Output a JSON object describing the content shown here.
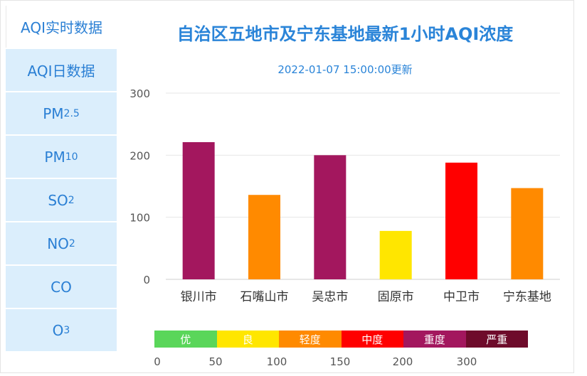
{
  "tabs": [
    {
      "label": "AQI实时数据",
      "sub": ""
    },
    {
      "label": "AQI日数据",
      "sub": ""
    },
    {
      "label": "PM",
      "sub": "2.5"
    },
    {
      "label": "PM",
      "sub": "10"
    },
    {
      "label": "SO",
      "sub": "2"
    },
    {
      "label": "NO",
      "sub": "2"
    },
    {
      "label": "CO",
      "sub": ""
    },
    {
      "label": "O",
      "sub": "3"
    }
  ],
  "chart_data": {
    "type": "bar",
    "title": "自治区五地市及宁东基地最新1小时AQI浓度",
    "subtitle": "2022-01-07 15:00:00更新",
    "categories": [
      "银川市",
      "石嘴山市",
      "吴忠市",
      "固原市",
      "中卫市",
      "宁东基地"
    ],
    "values": [
      221,
      136,
      200,
      78,
      188,
      147
    ],
    "bar_colors": [
      "#a3175e",
      "#ff8a00",
      "#a3175e",
      "#ffe600",
      "#ff0000",
      "#ff8a00"
    ],
    "ylim": [
      0,
      300
    ],
    "yticks": [
      0,
      100,
      200,
      300
    ],
    "grid": true
  },
  "legend": {
    "levels": [
      {
        "label": "优",
        "color": "#5ad65a"
      },
      {
        "label": "良",
        "color": "#ffe600"
      },
      {
        "label": "轻度",
        "color": "#ff8a00"
      },
      {
        "label": "中度",
        "color": "#ff0000"
      },
      {
        "label": "重度",
        "color": "#a3175e"
      },
      {
        "label": "严重",
        "color": "#6e0b2b"
      }
    ],
    "ticks": [
      "0",
      "50",
      "100",
      "150",
      "200",
      "300"
    ]
  }
}
